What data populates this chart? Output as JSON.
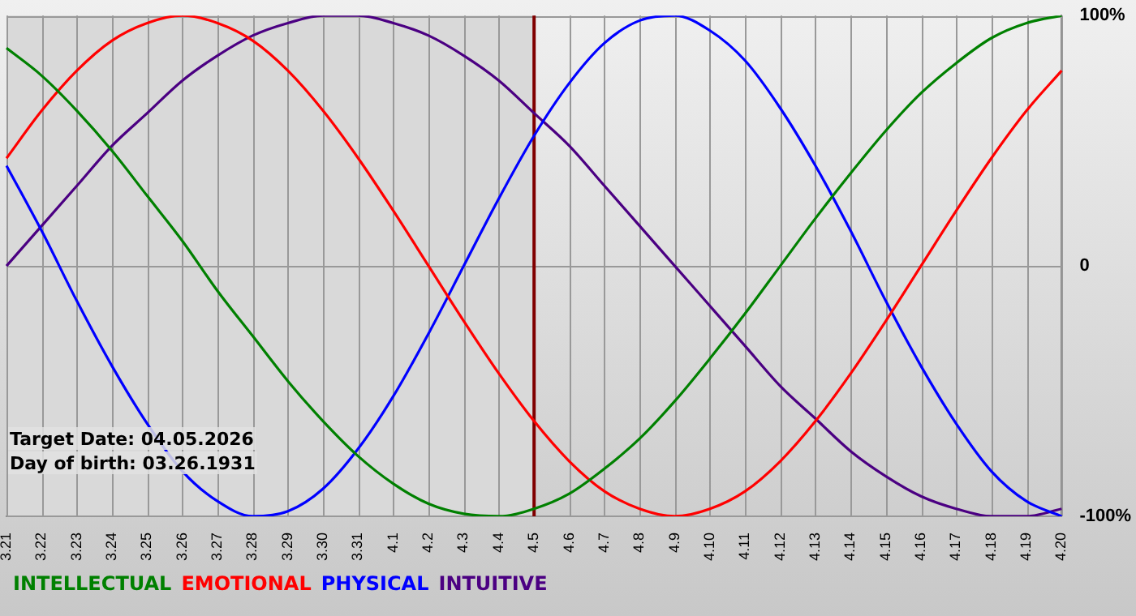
{
  "chart_data": {
    "type": "line",
    "categories": [
      "3.21",
      "3.22",
      "3.23",
      "3.24",
      "3.25",
      "3.26",
      "3.27",
      "3.28",
      "3.29",
      "3.30",
      "3.31",
      "4.1",
      "4.2",
      "4.3",
      "4.4",
      "4.5",
      "4.6",
      "4.7",
      "4.8",
      "4.9",
      "4.10",
      "4.11",
      "4.12",
      "4.13",
      "4.14",
      "4.15",
      "4.16",
      "4.17",
      "4.18",
      "4.19",
      "4.20"
    ],
    "series": [
      {
        "name": "INTELLECTUAL",
        "color": "#008000",
        "values": [
          87,
          76,
          62,
          46,
          28,
          10,
          -10,
          -28,
          -46,
          -62,
          -76,
          -87,
          -95,
          -99,
          -100,
          -97,
          -91,
          -81,
          -69,
          -54,
          -37,
          -19,
          0,
          19,
          37,
          54,
          69,
          81,
          91,
          97,
          100
        ]
      },
      {
        "name": "EMOTIONAL",
        "color": "#ff0000",
        "values": [
          43,
          62,
          78,
          90,
          97,
          100,
          97,
          90,
          78,
          62,
          43,
          22,
          0,
          -22,
          -43,
          -62,
          -78,
          -90,
          -97,
          -100,
          -97,
          -90,
          -78,
          -62,
          -43,
          -22,
          0,
          22,
          43,
          62,
          78
        ]
      },
      {
        "name": "PHYSICAL",
        "color": "#0000ff",
        "values": [
          40,
          14,
          -14,
          -40,
          -63,
          -82,
          -94,
          -100,
          -98,
          -89,
          -73,
          -52,
          -27,
          0,
          27,
          52,
          73,
          89,
          98,
          100,
          94,
          82,
          63,
          40,
          14,
          -14,
          -40,
          -63,
          -82,
          -94,
          -100
        ]
      },
      {
        "name": "INTUITIVE",
        "color": "#4b0082",
        "values": [
          0,
          16,
          32,
          48,
          61,
          74,
          84,
          92,
          97,
          100,
          100,
          97,
          92,
          84,
          74,
          61,
          48,
          32,
          16,
          0,
          -16,
          -32,
          -48,
          -61,
          -74,
          -84,
          -92,
          -97,
          -100,
          -100,
          -97
        ]
      }
    ],
    "ylim": [
      -100,
      100
    ],
    "yticks": [
      {
        "value": 100,
        "label": "100%"
      },
      0,
      {
        "value": -100,
        "label": "-100%"
      }
    ],
    "grid": true,
    "legend": "bottom left",
    "marker": "none",
    "line_style": "solid",
    "ref_lines": [
      {
        "axis": "x",
        "value": "4.5",
        "color": "#800000"
      }
    ],
    "bands": [
      {
        "axis": "x",
        "from": "3.21",
        "to": "4.5",
        "color": "#d9d9d9"
      }
    ],
    "annotations": [
      "Target Date: 04.05.2026",
      "Day of birth: 03.26.1931"
    ]
  }
}
